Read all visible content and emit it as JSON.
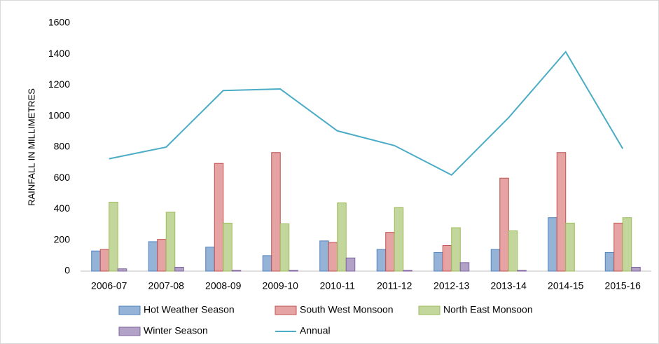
{
  "chart_data": {
    "type": "bar",
    "y_label": "RAINFALL IN MILLIMETRES",
    "categories": [
      "2006-07",
      "2007-08",
      "2008-09",
      "2009-10",
      "2010-11",
      "2011-12",
      "2012-13",
      "2013-14",
      "2014-15",
      "2015-16"
    ],
    "series": [
      {
        "name": "Hot Weather Season",
        "color": "#95b3d7",
        "border": "#4f81bd",
        "values": [
          130,
          190,
          155,
          100,
          195,
          140,
          120,
          140,
          345,
          120
        ]
      },
      {
        "name": "South West Monsoon",
        "color": "#e6a3a3",
        "border": "#c0504d",
        "values": [
          140,
          205,
          695,
          765,
          185,
          250,
          165,
          600,
          765,
          310
        ]
      },
      {
        "name": "North East Monsoon",
        "color": "#c3d69b",
        "border": "#9bbb59",
        "values": [
          445,
          380,
          310,
          305,
          440,
          410,
          280,
          260,
          310,
          345
        ]
      },
      {
        "name": "Winter Season",
        "color": "#b3a2c7",
        "border": "#8064a2",
        "values": [
          15,
          25,
          5,
          5,
          85,
          5,
          55,
          5,
          0,
          25
        ]
      },
      {
        "name": "Annual",
        "type": "line",
        "color": "#4bacc6",
        "values": [
          725,
          800,
          1165,
          1175,
          905,
          810,
          620,
          990,
          1415,
          790
        ]
      }
    ],
    "ylim": [
      0,
      1600
    ],
    "yticks": [
      0,
      200,
      400,
      600,
      800,
      1000,
      1200,
      1400,
      1600
    ],
    "grid": false
  }
}
